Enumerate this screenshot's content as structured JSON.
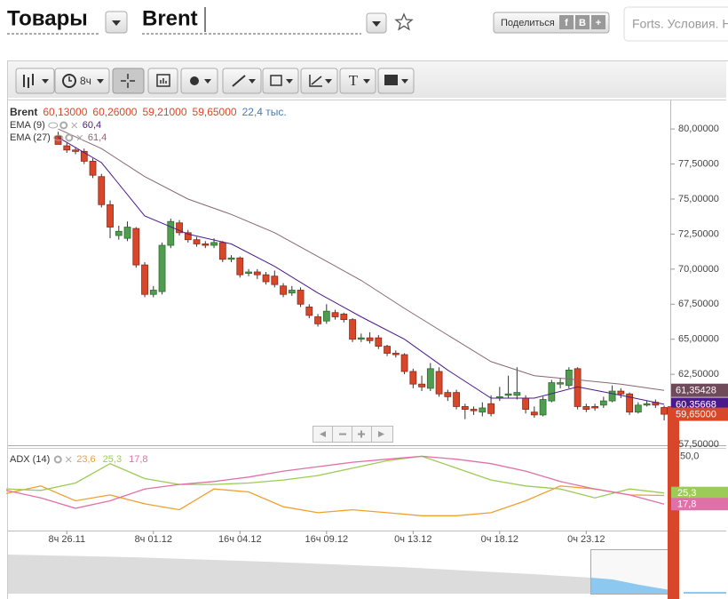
{
  "header": {
    "category": "Товары",
    "symbol": "Brent",
    "share": "Поделиться",
    "share_icons": [
      "f",
      "В",
      "+"
    ],
    "search_placeholder": "Forts. Условия. Н"
  },
  "toolbar": {
    "interval": "8ч",
    "text_tool": "T"
  },
  "price_chart": {
    "type": "candlestick",
    "symbol": "Brent",
    "legend_values": [
      "60,13000",
      "60,26000",
      "59,21000",
      "59,65000"
    ],
    "volume": "22,4 тыс.",
    "up_color": "#4f9e4f",
    "down_color": "#d9472b",
    "xlim": [
      -5.9,
      70.4
    ],
    "ylim": [
      57.5,
      82.1
    ],
    "yticks": [
      {
        "value": 80,
        "label": "80,00000"
      },
      {
        "value": 77.5,
        "label": "77,50000"
      },
      {
        "value": 75,
        "label": "75,00000"
      },
      {
        "value": 72.5,
        "label": "72,50000"
      },
      {
        "value": 70,
        "label": "70,00000"
      },
      {
        "value": 67.5,
        "label": "67,50000"
      },
      {
        "value": 65,
        "label": "65,00000"
      },
      {
        "value": 62.5,
        "label": "62,50000"
      },
      {
        "value": 57.5,
        "label": "57,50000"
      }
    ],
    "candles": {
      "open": [
        79.5,
        78.8,
        78.5,
        78.4,
        77.7,
        76.6,
        74.6,
        72.4,
        72.2,
        72.9,
        70.3,
        68.2,
        68.4,
        71.7,
        73.3,
        72.6,
        72.1,
        71.8,
        71.7,
        71.9,
        70.7,
        70.8,
        69.7,
        69.8,
        69.6,
        69.5,
        68.8,
        68.3,
        68.5,
        67.3,
        66.6,
        66.3,
        66.9,
        66.8,
        66.4,
        65.0,
        65.1,
        65.1,
        64.5,
        64.0,
        63.9,
        62.7,
        61.8,
        61.5,
        62.7,
        61.2,
        61.2,
        60.2,
        60.0,
        59.8,
        60.4,
        60.8,
        61.0,
        61.0,
        60.8,
        59.8,
        59.6,
        60.6,
        61.8,
        61.7,
        62.9,
        60.2,
        60.2,
        60.3,
        60.6,
        61.3,
        61.1,
        59.8,
        60.3,
        60.5,
        60.13
      ],
      "high": [
        79.8,
        79.0,
        78.7,
        78.6,
        77.9,
        76.8,
        74.9,
        73.1,
        73.4,
        73.0,
        70.5,
        68.8,
        71.9,
        73.6,
        73.5,
        72.8,
        72.3,
        72.0,
        72.2,
        72.0,
        71.0,
        70.9,
        70.0,
        70.0,
        69.8,
        69.9,
        69.0,
        68.8,
        68.7,
        67.5,
        66.8,
        67.5,
        67.1,
        66.9,
        66.5,
        65.4,
        65.5,
        65.3,
        64.6,
        64.2,
        64.0,
        62.9,
        62.4,
        63.3,
        63.0,
        61.4,
        61.4,
        60.4,
        60.2,
        60.5,
        61.0,
        61.6,
        62.4,
        63.0,
        61.0,
        60.2,
        60.9,
        62.1,
        62.2,
        63.0,
        63.0,
        60.4,
        60.4,
        60.9,
        61.7,
        61.5,
        61.2,
        60.5,
        60.6,
        60.7,
        60.26
      ],
      "low": [
        79.2,
        78.3,
        78.2,
        77.5,
        76.5,
        74.4,
        72.2,
        72.1,
        72.0,
        70.1,
        68.0,
        68.0,
        68.2,
        71.5,
        72.4,
        71.9,
        71.6,
        71.5,
        71.5,
        70.5,
        70.5,
        69.4,
        69.5,
        69.3,
        68.9,
        68.7,
        68.0,
        68.1,
        67.3,
        66.5,
        65.9,
        66.1,
        66.4,
        66.2,
        64.8,
        64.8,
        64.7,
        64.3,
        63.8,
        63.7,
        62.5,
        61.5,
        61.3,
        61.3,
        60.9,
        60.6,
        60.0,
        59.3,
        59.6,
        59.5,
        59.5,
        60.6,
        60.8,
        60.7,
        59.7,
        59.4,
        59.5,
        60.5,
        61.5,
        61.5,
        60.0,
        59.8,
        59.9,
        60.1,
        60.5,
        60.8,
        59.6,
        59.7,
        60.2,
        60.1,
        59.21
      ],
      "close": [
        78.9,
        78.5,
        78.4,
        77.7,
        76.7,
        74.6,
        73.0,
        72.7,
        73.0,
        70.3,
        68.2,
        68.5,
        71.7,
        73.4,
        72.6,
        72.1,
        71.8,
        71.7,
        71.9,
        70.7,
        70.8,
        69.6,
        69.8,
        69.6,
        69.1,
        68.9,
        68.2,
        68.5,
        67.5,
        66.7,
        66.1,
        67.0,
        66.6,
        66.4,
        65.0,
        65.1,
        64.9,
        64.5,
        64.0,
        63.9,
        62.7,
        61.8,
        61.6,
        62.9,
        61.1,
        60.9,
        60.2,
        60.0,
        59.9,
        60.1,
        59.7,
        60.9,
        61.1,
        61.2,
        60.0,
        59.6,
        60.7,
        61.9,
        61.9,
        62.8,
        60.2,
        60.0,
        60.1,
        60.6,
        61.3,
        61.1,
        59.8,
        60.3,
        60.4,
        60.3,
        59.65
      ]
    },
    "indicators": [
      {
        "name": "EMA (9)",
        "value": "60,4",
        "color": "#4b1a8a",
        "x": [
          0,
          5,
          10,
          15,
          20,
          25,
          30,
          35,
          40,
          45,
          50,
          55,
          60,
          65,
          70
        ],
        "values": [
          79.4,
          77.6,
          73.8,
          72.5,
          71.8,
          70.2,
          68.3,
          66.6,
          65.0,
          62.8,
          60.8,
          60.8,
          61.6,
          61.0,
          60.36
        ]
      },
      {
        "name": "EMA (27)",
        "value": "61,4",
        "color": "#8a6670",
        "x": [
          0,
          5,
          10,
          15,
          20,
          25,
          30,
          35,
          40,
          45,
          50,
          55,
          60,
          65,
          70
        ],
        "values": [
          80.0,
          78.6,
          76.6,
          75.0,
          73.9,
          72.6,
          70.9,
          69.2,
          67.2,
          65.3,
          63.4,
          62.4,
          62.1,
          61.8,
          61.35
        ]
      }
    ],
    "price_tags": [
      {
        "value": 61.35428,
        "label": "61,35428",
        "color": "#6e4a5a"
      },
      {
        "value": 60.35668,
        "label": "60,35668",
        "color": "#4b1a8a"
      },
      {
        "value": 59.65,
        "label": "59,65000",
        "color": "#d9472b"
      }
    ]
  },
  "adx_chart": {
    "type": "line",
    "title": "ADX (14)",
    "ylim": [
      0,
      55
    ],
    "yticks": [
      {
        "value": 50,
        "label": "50,0"
      }
    ],
    "x": [
      -6,
      -2,
      2,
      6,
      10,
      14,
      18,
      22,
      26,
      30,
      34,
      38,
      42,
      46,
      50,
      54,
      58,
      62,
      66,
      70
    ],
    "series": [
      {
        "value_label": "23,6",
        "color": "#f0a030",
        "price_tag": false,
        "values": [
          25,
          30,
          20,
          24,
          18,
          14,
          28,
          26,
          16,
          12,
          14,
          12,
          10,
          10,
          12,
          20,
          30,
          28,
          24,
          23.6
        ]
      },
      {
        "value_label": "25,3",
        "color": "#9ccc55",
        "price_tag": true,
        "values": [
          28,
          27,
          32,
          45,
          35,
          31,
          31,
          32,
          34,
          37,
          42,
          47,
          50,
          42,
          34,
          30,
          28,
          22,
          28,
          25.3
        ]
      },
      {
        "value_label": "17,8",
        "color": "#e070a8",
        "price_tag": true,
        "values": [
          27,
          22,
          15,
          20,
          28,
          31,
          33,
          36,
          40,
          43,
          46,
          48,
          50,
          48,
          45,
          40,
          33,
          28,
          24,
          17.8
        ]
      }
    ],
    "xticks": [
      {
        "value": 1,
        "label": "8ч 26.11"
      },
      {
        "value": 11,
        "label": "8ч 01.12"
      },
      {
        "value": 21,
        "label": "16ч 04.12"
      },
      {
        "value": 31,
        "label": "16ч 09.12"
      },
      {
        "value": 41,
        "label": "0ч 13.12"
      },
      {
        "value": 51,
        "label": "0ч 18.12"
      },
      {
        "value": 61,
        "label": "0ч 23.12"
      }
    ]
  }
}
